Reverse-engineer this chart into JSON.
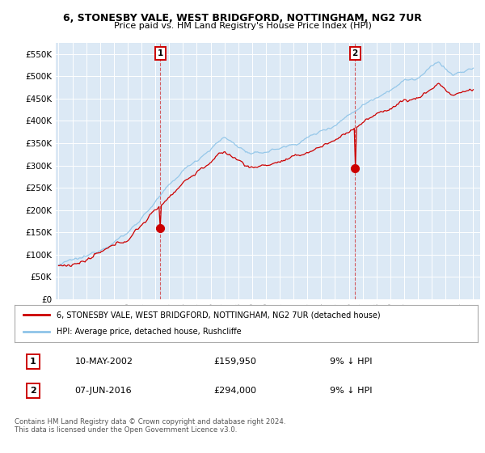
{
  "title_line1": "6, STONESBY VALE, WEST BRIDGFORD, NOTTINGHAM, NG2 7UR",
  "title_line2": "Price paid vs. HM Land Registry's House Price Index (HPI)",
  "plot_bg_color": "#dce9f5",
  "ylim": [
    0,
    575000
  ],
  "yticks": [
    0,
    50000,
    100000,
    150000,
    200000,
    250000,
    300000,
    350000,
    400000,
    450000,
    500000,
    550000
  ],
  "legend_line1": "6, STONESBY VALE, WEST BRIDGFORD, NOTTINGHAM, NG2 7UR (detached house)",
  "legend_line2": "HPI: Average price, detached house, Rushcliffe",
  "sale1_date": "10-MAY-2002",
  "sale1_price": 159950,
  "sale1_pct": "9% ↓ HPI",
  "sale2_date": "07-JUN-2016",
  "sale2_price": 294000,
  "sale2_pct": "9% ↓ HPI",
  "footer": "Contains HM Land Registry data © Crown copyright and database right 2024.\nThis data is licensed under the Open Government Licence v3.0.",
  "hpi_color": "#8ec4e8",
  "price_color": "#cc0000",
  "marker_color": "#cc0000",
  "sale1_year": 2002.37,
  "sale2_year": 2016.44,
  "xmin": 1994.8,
  "xmax": 2025.5
}
